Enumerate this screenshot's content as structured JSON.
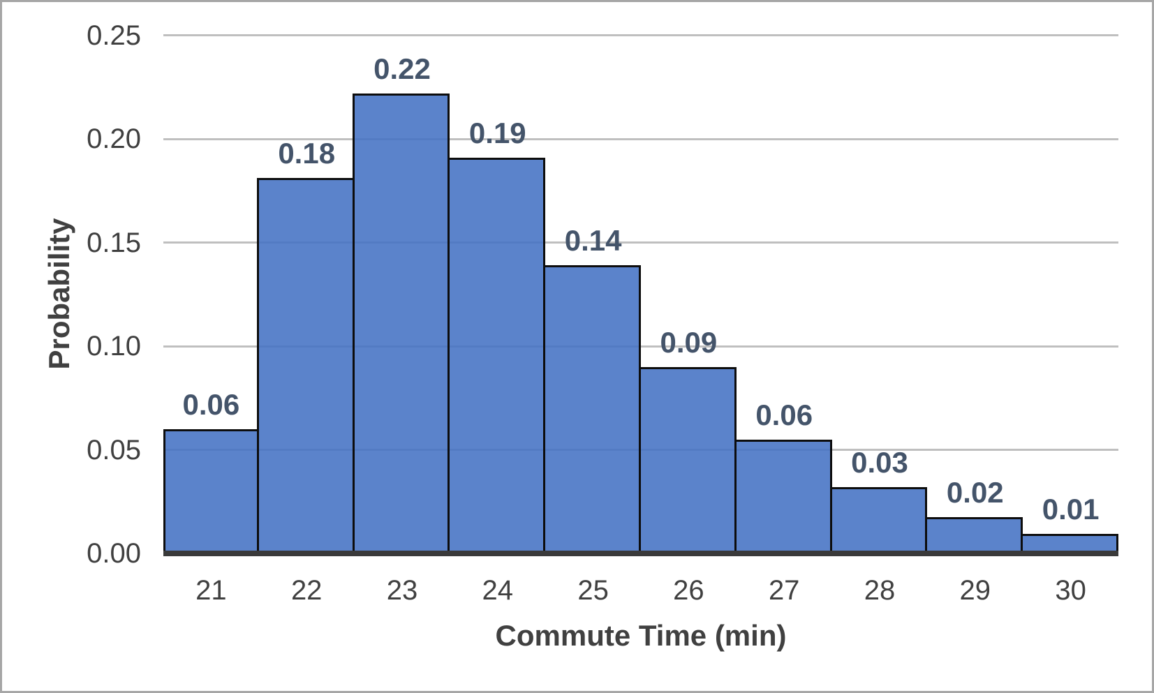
{
  "chart_data": {
    "type": "bar",
    "title": "",
    "xlabel": "Commute Time (min)",
    "ylabel": "Probability",
    "categories": [
      "21",
      "22",
      "23",
      "24",
      "25",
      "26",
      "27",
      "28",
      "29",
      "30"
    ],
    "values": [
      0.06,
      0.18,
      0.22,
      0.19,
      0.14,
      0.09,
      0.06,
      0.03,
      0.02,
      0.01
    ],
    "data_labels": [
      "0.06",
      "0.18",
      "0.22",
      "0.19",
      "0.14",
      "0.09",
      "0.06",
      "0.03",
      "0.02",
      "0.01"
    ],
    "bar_heights_est": [
      0.06,
      0.181,
      0.222,
      0.191,
      0.139,
      0.09,
      0.055,
      0.032,
      0.0175,
      0.0095
    ],
    "ylim": [
      0,
      0.25
    ],
    "ytick_step": 0.05,
    "yticks": [
      "0.00",
      "0.05",
      "0.10",
      "0.15",
      "0.20",
      "0.25"
    ],
    "grid": true,
    "legend": false,
    "gap_between_bars": 0,
    "colors": {
      "bar_fill": "#4472C4",
      "bar_fill_rendered": "#5C85CA",
      "bar_border": "#0D0D0D",
      "gridline": "#BFBFBF",
      "axis_line": "#3A3A3A",
      "tick_label": "#404040",
      "axis_title": "#404040",
      "data_label": "#44546A",
      "frame_border": "#A6A6A6",
      "background": "#FFFFFF"
    }
  }
}
